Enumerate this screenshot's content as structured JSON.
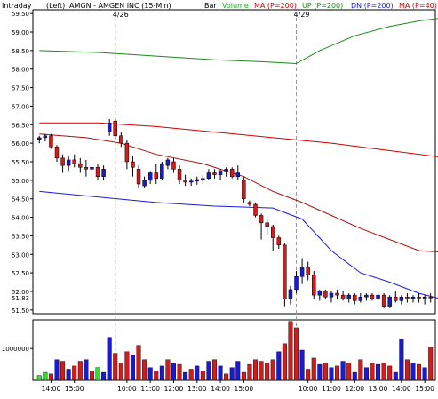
{
  "header": {
    "intraday": "Intraday",
    "left": "(Left)",
    "symbol_title": "AMGN - AMGEN INC  (15-Min)",
    "bar": "Bar",
    "volume": "Volume",
    "ma200": "MA (P=200)",
    "up200": "UP (P=200)",
    "dn200": "DN (P=200)",
    "ma40": "MA (P=40)"
  },
  "colors": {
    "frame": "#000000",
    "up_candle": "#1a1ad4",
    "down_candle": "#d41a1a",
    "ma200_line": "#cc0000",
    "upper_band": "#1a8a1a",
    "lower_band": "#1a1ae0",
    "ma40_line": "#aa1111",
    "volume_up": "#1a1ad4",
    "volume_down": "#d41a1a",
    "volume_green": "#33dd33",
    "volume_label": "#1aaa1a",
    "legend_red": "#cc0000",
    "legend_green": "#1a8a1a",
    "legend_blue": "#1a1ae0",
    "grid": "#999999"
  },
  "chart_data": {
    "type": "candlestick",
    "ylim": [
      51.4,
      59.6
    ],
    "yticks": [
      "59.50",
      "59.00",
      "58.50",
      "58.00",
      "57.50",
      "57.00",
      "56.50",
      "56.00",
      "55.50",
      "55.00",
      "54.50",
      "54.00",
      "53.50",
      "53.00",
      "52.50",
      "52.00",
      "51.50"
    ],
    "last_price_label": "51.83",
    "last_price": 51.83,
    "date_separators": [
      {
        "label": "4/26",
        "bar": 13.5
      },
      {
        "label": "4/29",
        "bar": 44.5
      }
    ],
    "xtick_labels": [
      {
        "label": "14:00",
        "bar": 2.5
      },
      {
        "label": "15:00",
        "bar": 6.5
      },
      {
        "label": "10:00",
        "bar": 15.5
      },
      {
        "label": "11:00",
        "bar": 19.5
      },
      {
        "label": "12:00",
        "bar": 23.5
      },
      {
        "label": "13:00",
        "bar": 27.5
      },
      {
        "label": "14:00",
        "bar": 31.5
      },
      {
        "label": "15:00",
        "bar": 35.5
      },
      {
        "label": "10:00",
        "bar": 46.5
      },
      {
        "label": "11:00",
        "bar": 50.5
      },
      {
        "label": "12:00",
        "bar": 54.5
      },
      {
        "label": "13:00",
        "bar": 58.5
      },
      {
        "label": "14:00",
        "bar": 62.5
      },
      {
        "label": "15:00",
        "bar": 66.5
      }
    ],
    "ohlc": [
      {
        "o": 56.1,
        "h": 56.2,
        "l": 56.0,
        "c": 56.15
      },
      {
        "o": 56.15,
        "h": 56.25,
        "l": 56.05,
        "c": 56.2
      },
      {
        "o": 56.2,
        "h": 56.25,
        "l": 55.85,
        "c": 55.9
      },
      {
        "o": 55.9,
        "h": 55.95,
        "l": 55.5,
        "c": 55.6
      },
      {
        "o": 55.6,
        "h": 55.7,
        "l": 55.2,
        "c": 55.4
      },
      {
        "o": 55.4,
        "h": 55.65,
        "l": 55.25,
        "c": 55.55
      },
      {
        "o": 55.55,
        "h": 55.7,
        "l": 55.35,
        "c": 55.45
      },
      {
        "o": 55.45,
        "h": 55.6,
        "l": 55.2,
        "c": 55.35
      },
      {
        "o": 55.35,
        "h": 55.55,
        "l": 55.1,
        "c": 55.3
      },
      {
        "o": 55.3,
        "h": 55.45,
        "l": 55.0,
        "c": 55.35
      },
      {
        "o": 55.35,
        "h": 55.45,
        "l": 55.0,
        "c": 55.1
      },
      {
        "o": 55.1,
        "h": 55.4,
        "l": 55.0,
        "c": 55.3
      },
      {
        "o": 56.3,
        "h": 56.65,
        "l": 56.2,
        "c": 56.55
      },
      {
        "o": 56.6,
        "h": 56.65,
        "l": 56.1,
        "c": 56.2
      },
      {
        "o": 56.2,
        "h": 56.3,
        "l": 55.9,
        "c": 56.0
      },
      {
        "o": 56.0,
        "h": 56.1,
        "l": 55.3,
        "c": 55.5
      },
      {
        "o": 55.5,
        "h": 55.65,
        "l": 55.1,
        "c": 55.35
      },
      {
        "o": 55.3,
        "h": 55.4,
        "l": 54.8,
        "c": 54.9
      },
      {
        "o": 54.85,
        "h": 55.1,
        "l": 54.8,
        "c": 55.0
      },
      {
        "o": 55.0,
        "h": 55.25,
        "l": 54.9,
        "c": 55.2
      },
      {
        "o": 55.2,
        "h": 55.45,
        "l": 54.9,
        "c": 55.05
      },
      {
        "o": 55.05,
        "h": 55.5,
        "l": 55.0,
        "c": 55.45
      },
      {
        "o": 55.4,
        "h": 55.6,
        "l": 55.3,
        "c": 55.55
      },
      {
        "o": 55.5,
        "h": 55.6,
        "l": 55.2,
        "c": 55.3
      },
      {
        "o": 55.3,
        "h": 55.4,
        "l": 54.9,
        "c": 55.0
      },
      {
        "o": 55.0,
        "h": 55.15,
        "l": 54.85,
        "c": 54.95
      },
      {
        "o": 54.95,
        "h": 55.05,
        "l": 54.85,
        "c": 54.98
      },
      {
        "o": 54.98,
        "h": 55.1,
        "l": 54.88,
        "c": 55.02
      },
      {
        "o": 55.0,
        "h": 55.15,
        "l": 54.9,
        "c": 55.05
      },
      {
        "o": 55.05,
        "h": 55.3,
        "l": 55.0,
        "c": 55.2
      },
      {
        "o": 55.2,
        "h": 55.3,
        "l": 55.05,
        "c": 55.15
      },
      {
        "o": 55.15,
        "h": 55.3,
        "l": 55.0,
        "c": 55.25
      },
      {
        "o": 55.25,
        "h": 55.35,
        "l": 55.1,
        "c": 55.3
      },
      {
        "o": 55.3,
        "h": 55.35,
        "l": 55.05,
        "c": 55.1
      },
      {
        "o": 55.1,
        "h": 55.4,
        "l": 55.0,
        "c": 55.2
      },
      {
        "o": 55.0,
        "h": 55.1,
        "l": 54.4,
        "c": 54.5
      },
      {
        "o": 54.4,
        "h": 54.45,
        "l": 54.3,
        "c": 54.35
      },
      {
        "o": 54.35,
        "h": 54.4,
        "l": 54.0,
        "c": 54.05
      },
      {
        "o": 54.05,
        "h": 54.1,
        "l": 53.4,
        "c": 53.85
      },
      {
        "o": 53.85,
        "h": 53.95,
        "l": 53.5,
        "c": 53.75
      },
      {
        "o": 53.75,
        "h": 53.8,
        "l": 53.1,
        "c": 53.45
      },
      {
        "o": 53.45,
        "h": 53.5,
        "l": 53.15,
        "c": 53.25
      },
      {
        "o": 53.25,
        "h": 53.3,
        "l": 51.6,
        "c": 51.8
      },
      {
        "o": 51.8,
        "h": 52.15,
        "l": 51.65,
        "c": 52.05
      },
      {
        "o": 52.05,
        "h": 52.55,
        "l": 51.95,
        "c": 52.4
      },
      {
        "o": 52.4,
        "h": 52.9,
        "l": 52.2,
        "c": 52.65
      },
      {
        "o": 52.65,
        "h": 52.8,
        "l": 52.3,
        "c": 52.45
      },
      {
        "o": 52.45,
        "h": 52.55,
        "l": 51.8,
        "c": 51.9
      },
      {
        "o": 51.9,
        "h": 52.05,
        "l": 51.75,
        "c": 52.0
      },
      {
        "o": 52.0,
        "h": 52.05,
        "l": 51.8,
        "c": 51.85
      },
      {
        "o": 51.85,
        "h": 52.0,
        "l": 51.7,
        "c": 51.95
      },
      {
        "o": 51.95,
        "h": 52.05,
        "l": 51.8,
        "c": 51.9
      },
      {
        "o": 51.9,
        "h": 52.0,
        "l": 51.75,
        "c": 51.8
      },
      {
        "o": 51.8,
        "h": 51.95,
        "l": 51.7,
        "c": 51.9
      },
      {
        "o": 51.9,
        "h": 51.95,
        "l": 51.65,
        "c": 51.75
      },
      {
        "o": 51.75,
        "h": 51.95,
        "l": 51.7,
        "c": 51.85
      },
      {
        "o": 51.85,
        "h": 51.95,
        "l": 51.75,
        "c": 51.9
      },
      {
        "o": 51.9,
        "h": 51.95,
        "l": 51.75,
        "c": 51.8
      },
      {
        "o": 51.8,
        "h": 51.95,
        "l": 51.7,
        "c": 51.9
      },
      {
        "o": 51.9,
        "h": 51.95,
        "l": 51.55,
        "c": 51.6
      },
      {
        "o": 51.6,
        "h": 51.9,
        "l": 51.55,
        "c": 51.85
      },
      {
        "o": 51.85,
        "h": 52.0,
        "l": 51.7,
        "c": 51.75
      },
      {
        "o": 51.75,
        "h": 51.9,
        "l": 51.65,
        "c": 51.85
      },
      {
        "o": 51.85,
        "h": 51.95,
        "l": 51.7,
        "c": 51.8
      },
      {
        "o": 51.8,
        "h": 51.9,
        "l": 51.7,
        "c": 51.85
      },
      {
        "o": 51.85,
        "h": 51.95,
        "l": 51.7,
        "c": 51.8
      },
      {
        "o": 51.8,
        "h": 51.9,
        "l": 51.65,
        "c": 51.85
      },
      {
        "o": 51.85,
        "h": 51.95,
        "l": 51.7,
        "c": 51.83
      }
    ],
    "ma200_band": {
      "x": [
        0,
        10,
        20,
        30,
        40,
        50,
        60,
        70
      ],
      "y": [
        56.55,
        56.55,
        56.45,
        56.3,
        56.15,
        56.0,
        55.8,
        55.6
      ]
    },
    "upper_band": {
      "x": [
        0,
        10,
        20,
        30,
        38,
        44,
        48,
        54,
        60,
        65,
        70
      ],
      "y": [
        58.5,
        58.45,
        58.35,
        58.25,
        58.2,
        58.15,
        58.5,
        58.9,
        59.15,
        59.3,
        59.4
      ]
    },
    "lower_band": {
      "x": [
        0,
        10,
        20,
        30,
        40,
        45,
        50,
        55,
        60,
        65,
        70
      ],
      "y": [
        54.7,
        54.55,
        54.4,
        54.3,
        54.25,
        53.95,
        53.1,
        52.5,
        52.25,
        51.95,
        51.75
      ]
    },
    "ma40": {
      "x": [
        0,
        8,
        14,
        20,
        28,
        35,
        40,
        45,
        50,
        55,
        60,
        65,
        70
      ],
      "y": [
        56.25,
        56.15,
        56.0,
        55.7,
        55.45,
        55.1,
        54.7,
        54.4,
        54.05,
        53.7,
        53.4,
        53.1,
        53.05
      ]
    },
    "volume": {
      "yticks": [
        "1000000"
      ],
      "ylim": [
        0,
        1900000
      ],
      "values": [
        150000,
        250000,
        200000,
        650000,
        600000,
        350000,
        450000,
        600000,
        650000,
        300000,
        400000,
        250000,
        1350000,
        850000,
        550000,
        900000,
        800000,
        1100000,
        650000,
        400000,
        300000,
        450000,
        650000,
        550000,
        500000,
        250000,
        350000,
        450000,
        300000,
        600000,
        650000,
        450000,
        200000,
        400000,
        600000,
        250000,
        500000,
        650000,
        600000,
        550000,
        650000,
        900000,
        1150000,
        1850000,
        1650000,
        950000,
        350000,
        700000,
        500000,
        550000,
        400000,
        450000,
        600000,
        550000,
        250000,
        650000,
        400000,
        550000,
        500000,
        550000,
        450000,
        250000,
        1300000,
        650000,
        550000,
        500000,
        400000,
        1050000
      ],
      "colors": [
        "green",
        "green",
        "red",
        "blue",
        "red",
        "blue",
        "red",
        "red",
        "blue",
        "red",
        "green",
        "blue",
        "blue",
        "red",
        "red",
        "red",
        "blue",
        "red",
        "red",
        "blue",
        "red",
        "blue",
        "red",
        "blue",
        "red",
        "blue",
        "red",
        "blue",
        "red",
        "blue",
        "red",
        "blue",
        "red",
        "blue",
        "blue",
        "red",
        "red",
        "red",
        "red",
        "red",
        "red",
        "blue",
        "red",
        "red",
        "red",
        "blue",
        "red",
        "red",
        "blue",
        "red",
        "blue",
        "red",
        "blue",
        "red",
        "blue",
        "red",
        "blue",
        "red",
        "blue",
        "red",
        "red",
        "blue",
        "blue",
        "red",
        "blue",
        "red",
        "blue",
        "red"
      ]
    }
  }
}
